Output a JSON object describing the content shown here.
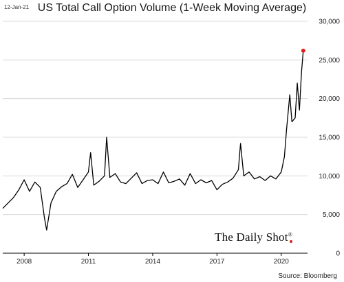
{
  "header": {
    "date": "12-Jan-21"
  },
  "branding": {
    "logo_text": "The Daily Shot",
    "registered_mark": "®"
  },
  "footer": {
    "source": "Source: Bloomberg"
  },
  "colors": {
    "line": "#000000",
    "endpoint": "#e0201b",
    "grid": "#cfcfcf"
  },
  "chart_data": {
    "type": "line",
    "title": "US Total Call Option Volume (1-Week Moving Average)",
    "xlabel": "",
    "ylabel": "",
    "xlim": [
      2007.0,
      2021.1
    ],
    "ylim": [
      0,
      30000
    ],
    "x_ticks": [
      {
        "value": 2008,
        "label": "2008"
      },
      {
        "value": 2011,
        "label": "2011"
      },
      {
        "value": 2014,
        "label": "2014"
      },
      {
        "value": 2017,
        "label": "2017"
      },
      {
        "value": 2020,
        "label": "2020"
      }
    ],
    "y_ticks": [
      {
        "value": 0,
        "label": "0"
      },
      {
        "value": 5000,
        "label": "5,000"
      },
      {
        "value": 10000,
        "label": "10,000"
      },
      {
        "value": 15000,
        "label": "15,000"
      },
      {
        "value": 20000,
        "label": "20,000"
      },
      {
        "value": 25000,
        "label": "25,000"
      },
      {
        "value": 30000,
        "label": "30,000"
      }
    ],
    "grid": "horizontal",
    "series": [
      {
        "x": [
          2007.0,
          2007.25,
          2007.5,
          2007.75,
          2008.0,
          2008.25,
          2008.5,
          2008.75,
          2008.95,
          2009.05,
          2009.25,
          2009.5,
          2009.75,
          2010.0,
          2010.25,
          2010.5,
          2010.75,
          2011.0,
          2011.1,
          2011.25,
          2011.5,
          2011.75,
          2011.85,
          2012.0,
          2012.25,
          2012.5,
          2012.75,
          2013.0,
          2013.25,
          2013.5,
          2013.75,
          2014.0,
          2014.25,
          2014.5,
          2014.75,
          2015.0,
          2015.25,
          2015.5,
          2015.75,
          2016.0,
          2016.25,
          2016.5,
          2016.75,
          2017.0,
          2017.25,
          2017.5,
          2017.75,
          2018.0,
          2018.1,
          2018.25,
          2018.5,
          2018.75,
          2019.0,
          2019.25,
          2019.5,
          2019.75,
          2020.0,
          2020.15,
          2020.25,
          2020.4,
          2020.5,
          2020.65,
          2020.75,
          2020.85,
          2020.95,
          2021.03
        ],
        "values": [
          5800,
          6500,
          7200,
          8200,
          9500,
          8000,
          9200,
          8500,
          4500,
          3000,
          6500,
          8000,
          8600,
          9000,
          10200,
          8500,
          9500,
          10500,
          13000,
          8800,
          9300,
          10000,
          15000,
          9800,
          10300,
          9200,
          9000,
          9700,
          10400,
          9000,
          9400,
          9500,
          9000,
          10500,
          9100,
          9300,
          9600,
          8800,
          10300,
          9000,
          9500,
          9100,
          9400,
          8200,
          8900,
          9200,
          9700,
          10800,
          14200,
          10000,
          10500,
          9600,
          9900,
          9400,
          10000,
          9600,
          10500,
          12500,
          16000,
          20500,
          17000,
          17500,
          22000,
          18500,
          23500,
          26200
        ]
      }
    ]
  }
}
